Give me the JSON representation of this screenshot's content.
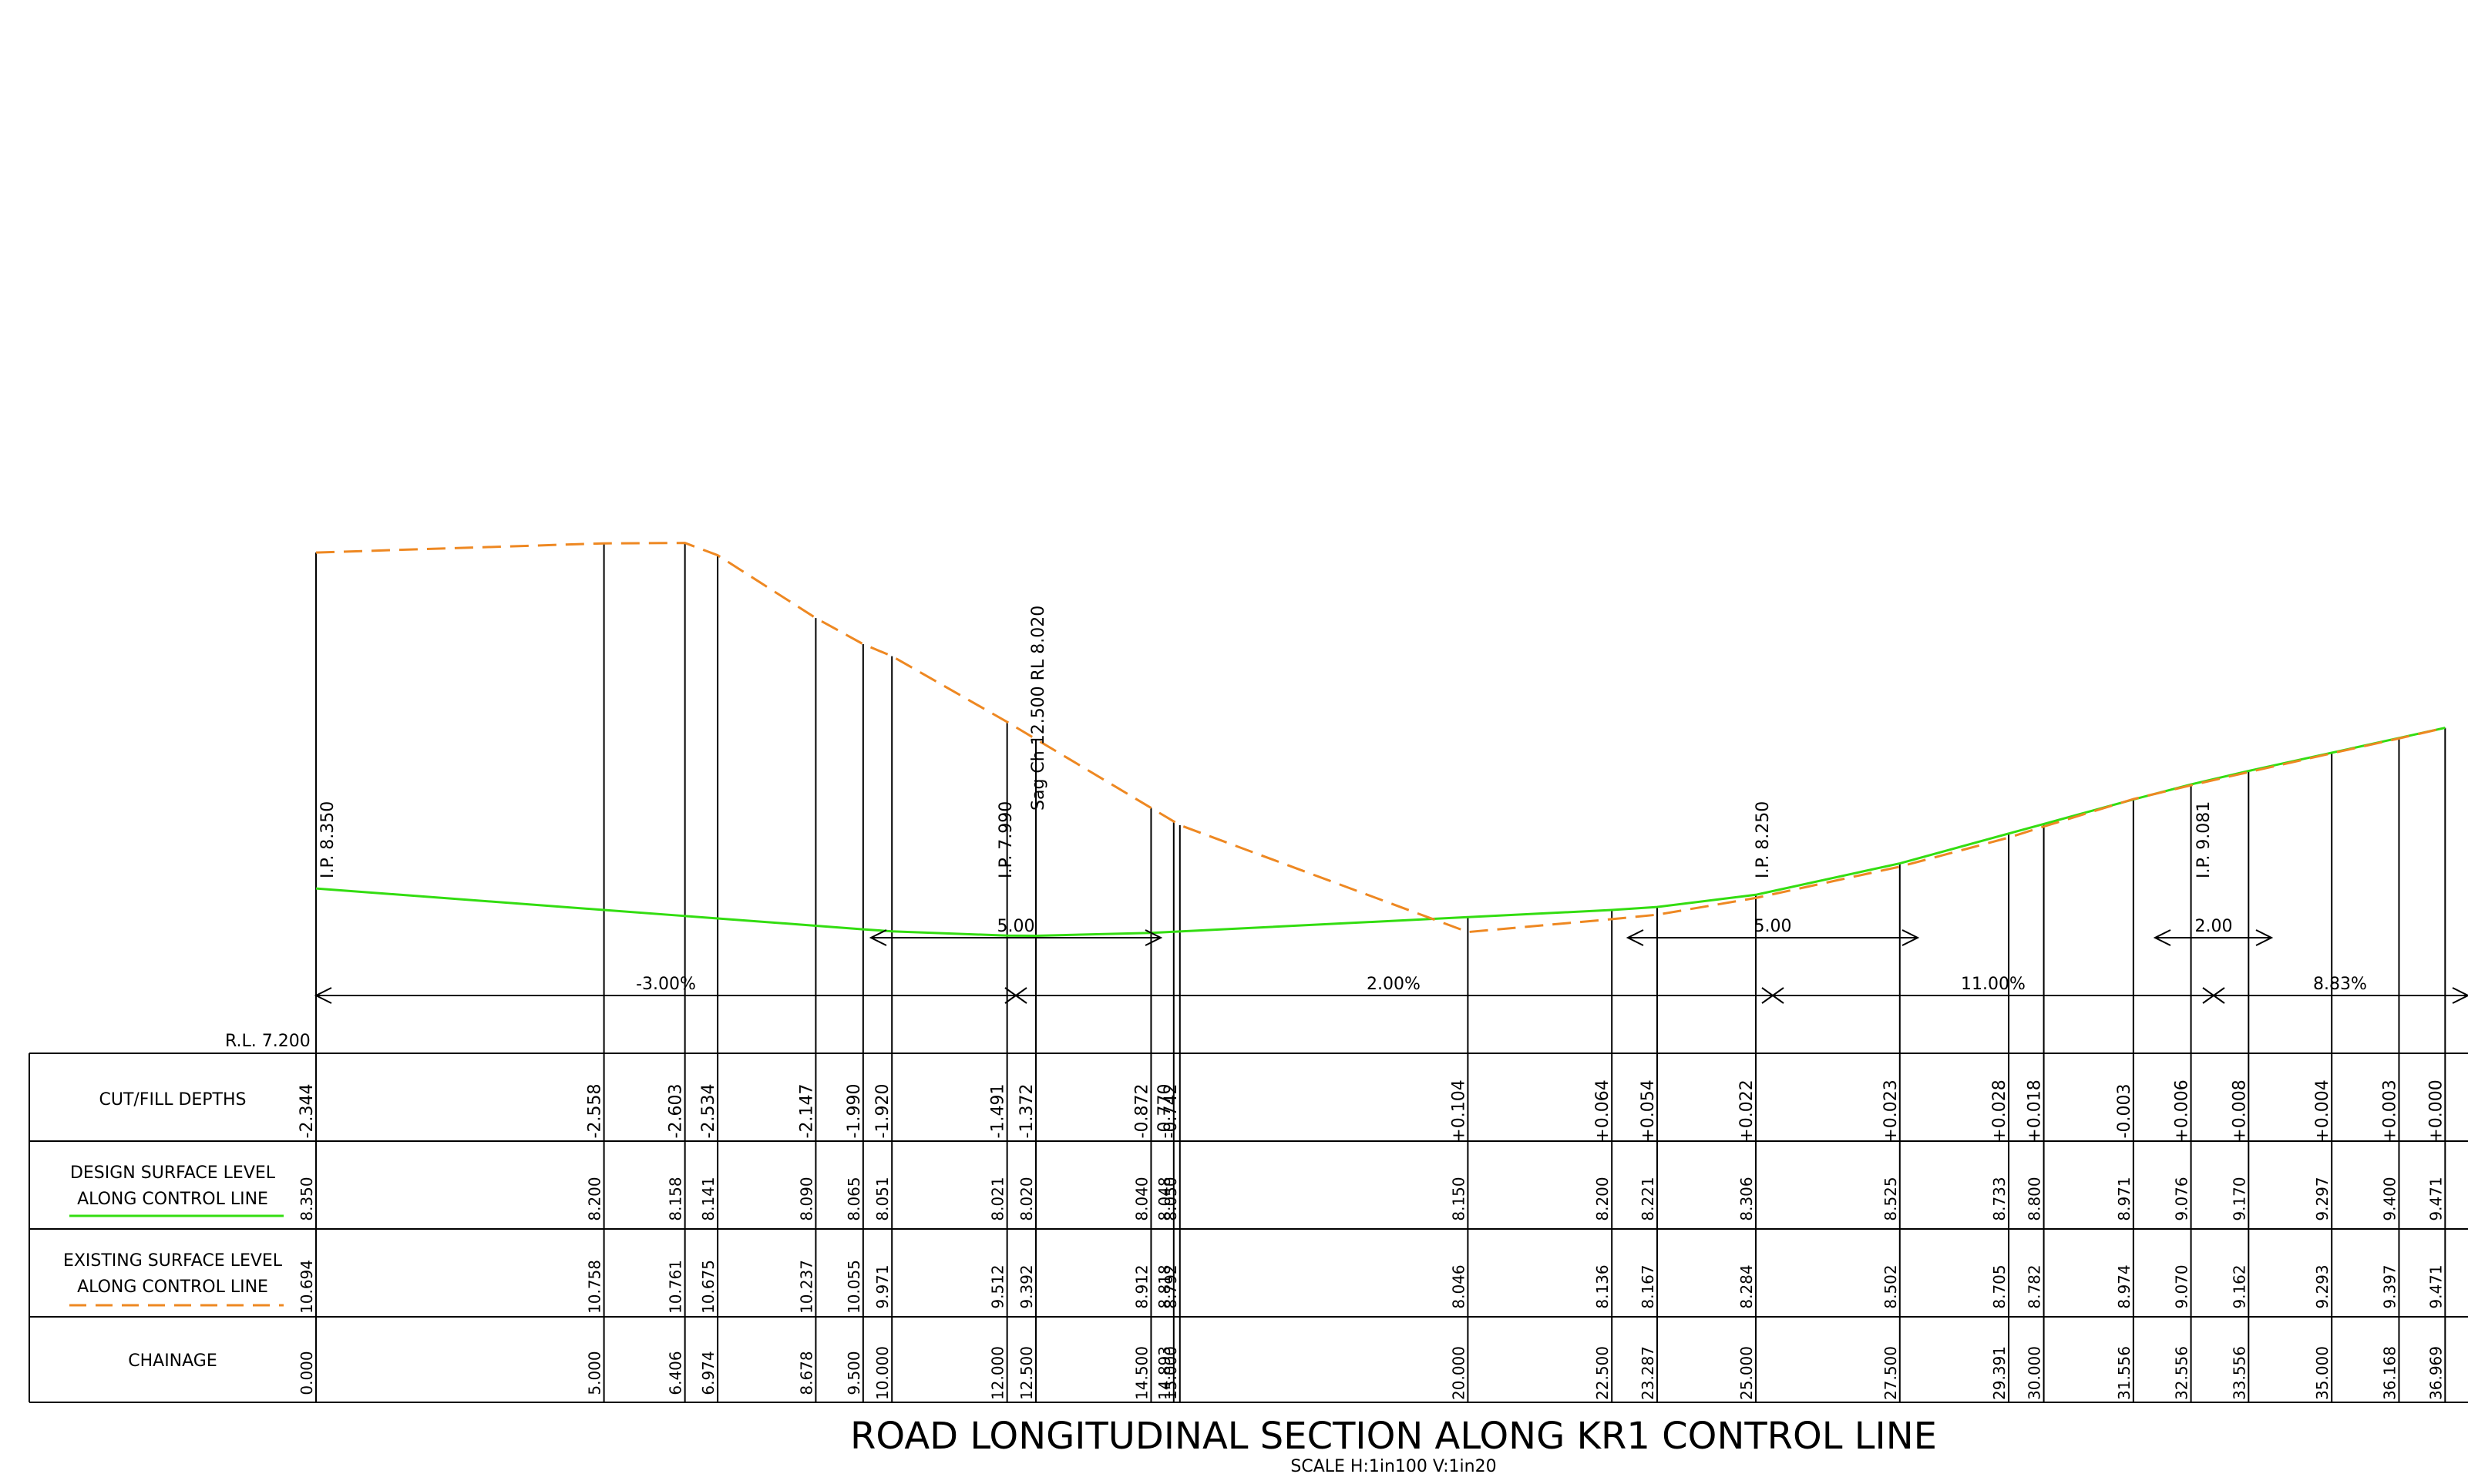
{
  "title": "ROAD LONGITUDINAL SECTION ALONG KR1 CONTROL LINE",
  "scale": "SCALE  H:1in100  V:1in20",
  "datum": "R.L. 7.200",
  "rows": {
    "cut_fill": "CUT/FILL DEPTHS",
    "design_1": "DESIGN SURFACE LEVEL",
    "design_2": "ALONG CONTROL LINE",
    "existing_1": "EXISTING SURFACE LEVEL",
    "existing_2": "ALONG CONTROL LINE",
    "chainage": "CHAINAGE"
  },
  "colors": {
    "design": "#33dd11",
    "existing": "#ee8822",
    "lines": "#000000"
  },
  "ip_labels": [
    "I.P. 8.350",
    "I.P. 7.990",
    "I.P. 8.250",
    "I.P. 9.081"
  ],
  "sag_label": "Sag Ch 12.500  RL  8.020",
  "grades": [
    "-3.00%",
    "2.00%",
    "11.00%",
    "8.83%"
  ],
  "vc_lengths": [
    "5.00",
    "5.00",
    "2.00"
  ],
  "stations": [
    {
      "ch": "0.000",
      "design": "8.350",
      "existing": "10.694",
      "cutfill": "-2.344"
    },
    {
      "ch": "5.000",
      "design": "8.200",
      "existing": "10.758",
      "cutfill": "-2.558"
    },
    {
      "ch": "6.406",
      "design": "8.158",
      "existing": "10.761",
      "cutfill": "-2.603"
    },
    {
      "ch": "6.974",
      "design": "8.141",
      "existing": "10.675",
      "cutfill": "-2.534"
    },
    {
      "ch": "8.678",
      "design": "8.090",
      "existing": "10.237",
      "cutfill": "-2.147"
    },
    {
      "ch": "9.500",
      "design": "8.065",
      "existing": "10.055",
      "cutfill": "-1.990"
    },
    {
      "ch": "10.000",
      "design": "8.051",
      "existing": "9.971",
      "cutfill": "-1.920"
    },
    {
      "ch": "12.000",
      "design": "8.021",
      "existing": "9.512",
      "cutfill": "-1.491"
    },
    {
      "ch": "12.500",
      "design": "8.020",
      "existing": "9.392",
      "cutfill": "-1.372"
    },
    {
      "ch": "14.500",
      "design": "8.040",
      "existing": "8.912",
      "cutfill": "-0.872"
    },
    {
      "ch": "14.893",
      "design": "8.048",
      "existing": "8.818",
      "cutfill": "-0.770"
    },
    {
      "ch": "15.000",
      "design": "8.050",
      "existing": "8.792",
      "cutfill": "-0.742"
    },
    {
      "ch": "20.000",
      "design": "8.150",
      "existing": "8.046",
      "cutfill": "+0.104"
    },
    {
      "ch": "22.500",
      "design": "8.200",
      "existing": "8.136",
      "cutfill": "+0.064"
    },
    {
      "ch": "23.287",
      "design": "8.221",
      "existing": "8.167",
      "cutfill": "+0.054"
    },
    {
      "ch": "25.000",
      "design": "8.306",
      "existing": "8.284",
      "cutfill": "+0.022"
    },
    {
      "ch": "27.500",
      "design": "8.525",
      "existing": "8.502",
      "cutfill": "+0.023"
    },
    {
      "ch": "29.391",
      "design": "8.733",
      "existing": "8.705",
      "cutfill": "+0.028"
    },
    {
      "ch": "30.000",
      "design": "8.800",
      "existing": "8.782",
      "cutfill": "+0.018"
    },
    {
      "ch": "31.556",
      "design": "8.971",
      "existing": "8.974",
      "cutfill": "-0.003"
    },
    {
      "ch": "32.556",
      "design": "9.076",
      "existing": "9.070",
      "cutfill": "+0.006"
    },
    {
      "ch": "33.556",
      "design": "9.170",
      "existing": "9.162",
      "cutfill": "+0.008"
    },
    {
      "ch": "35.000",
      "design": "9.297",
      "existing": "9.293",
      "cutfill": "+0.004"
    },
    {
      "ch": "36.168",
      "design": "9.400",
      "existing": "9.397",
      "cutfill": "+0.003"
    },
    {
      "ch": "36.969",
      "design": "9.471",
      "existing": "9.471",
      "cutfill": "+0.000"
    }
  ]
}
